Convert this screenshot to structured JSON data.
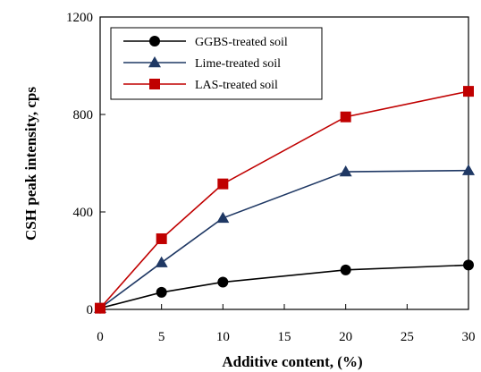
{
  "chart_data": {
    "type": "line",
    "title": "",
    "xlabel": "Additive content, (%)",
    "ylabel": "CSH peak intensity, cps",
    "xlim": [
      0,
      30
    ],
    "ylim": [
      0,
      1200
    ],
    "xticks": [
      0,
      5,
      10,
      15,
      20,
      25,
      30
    ],
    "yticks": [
      0,
      400,
      800,
      1200
    ],
    "grid": false,
    "legend_position": "top-left",
    "series": [
      {
        "name": "GGBS-treated soil",
        "marker": "circle",
        "color": "#000000",
        "x": [
          0,
          5,
          10,
          20,
          30
        ],
        "y": [
          5,
          70,
          112,
          162,
          182
        ]
      },
      {
        "name": "Lime-treated soil",
        "marker": "triangle",
        "color": "#1f3864",
        "x": [
          0,
          5,
          10,
          20,
          30
        ],
        "y": [
          5,
          192,
          375,
          565,
          570
        ]
      },
      {
        "name": "LAS-treated soil",
        "marker": "square",
        "color": "#c00000",
        "x": [
          0,
          5,
          10,
          20,
          30
        ],
        "y": [
          5,
          290,
          515,
          790,
          895
        ]
      }
    ]
  }
}
